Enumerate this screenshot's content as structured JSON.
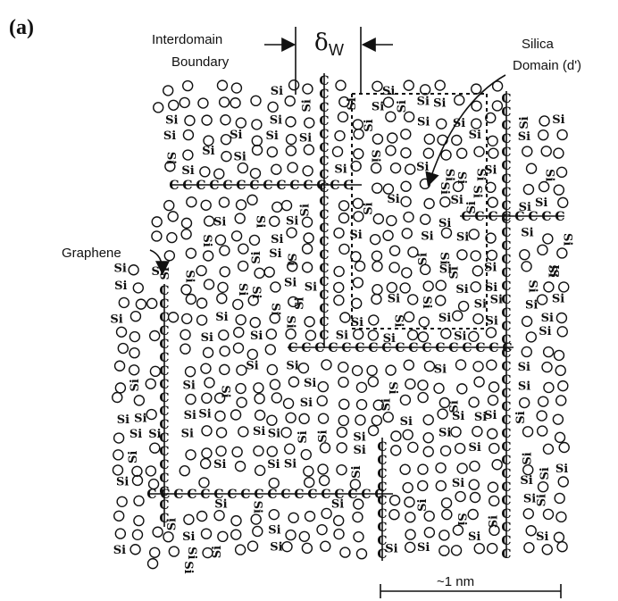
{
  "panel_label": "(a)",
  "labels": {
    "interdomain_line1": "Interdomain",
    "interdomain_line2": "Boundary",
    "delta_symbol": "δ",
    "delta_subscript": "W",
    "silica_line1": "Silica",
    "silica_line2": "Domain (d')",
    "graphene": "Graphene",
    "scale": "~1 nm"
  },
  "atoms": {
    "carbon": "C",
    "silicon": "Si",
    "oxygen_icon": "open-circle"
  }
}
